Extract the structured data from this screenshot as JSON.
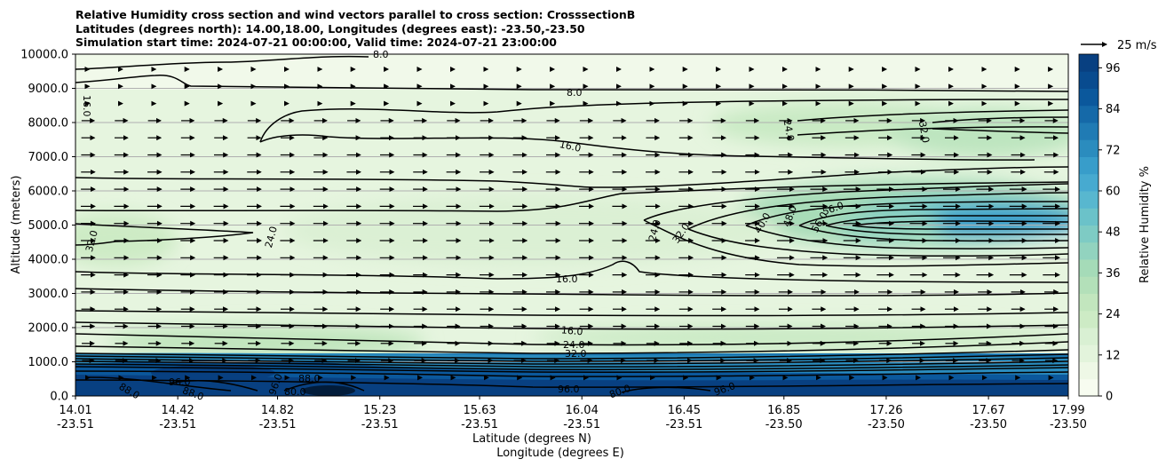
{
  "title_lines": [
    "Relative Humidity cross section and wind vectors parallel to cross section: CrosssectionB",
    "Latitudes (degrees north): 14.00,18.00, Longitudes (degrees east): -23.50,-23.50",
    "Simulation start time: 2024-07-21 00:00:00, Valid time: 2024-07-21 23:00:00"
  ],
  "chart_data": {
    "type": "contour cross-section with wind vectors",
    "ylabel": "Altitude (meters)",
    "xlabel_lines": [
      "Latitude (degrees N)",
      "Longitude (degrees E)"
    ],
    "ylim": [
      0,
      10000
    ],
    "y_ticks": [
      "0.0",
      "1000.0",
      "2000.0",
      "3000.0",
      "4000.0",
      "5000.0",
      "6000.0",
      "7000.0",
      "8000.0",
      "9000.0",
      "10000.0"
    ],
    "x_ticks": [
      {
        "lat": "14.01",
        "lon": "-23.51"
      },
      {
        "lat": "14.42",
        "lon": "-23.51"
      },
      {
        "lat": "14.82",
        "lon": "-23.51"
      },
      {
        "lat": "15.23",
        "lon": "-23.51"
      },
      {
        "lat": "15.63",
        "lon": "-23.51"
      },
      {
        "lat": "16.04",
        "lon": "-23.51"
      },
      {
        "lat": "16.45",
        "lon": "-23.51"
      },
      {
        "lat": "16.85",
        "lon": "-23.50"
      },
      {
        "lat": "17.26",
        "lon": "-23.50"
      },
      {
        "lat": "17.67",
        "lon": "-23.50"
      },
      {
        "lat": "17.99",
        "lon": "-23.50"
      }
    ],
    "grid": "horizontal lines",
    "colorbar": {
      "label": "Relative Humidity %",
      "ticks": [
        "0",
        "12",
        "24",
        "36",
        "48",
        "60",
        "72",
        "84",
        "96"
      ],
      "range": [
        0,
        100
      ],
      "colors": [
        "#f7fcf0",
        "#eef8e6",
        "#e3f4dc",
        "#d9f0d3",
        "#cdebc5",
        "#c2e6be",
        "#b3e0b9",
        "#a5dbb8",
        "#92d3bf",
        "#7ecbc4",
        "#6bc2c9",
        "#58b7cf",
        "#47aad0",
        "#389dca",
        "#2b8cbe",
        "#207bb4",
        "#1569a8",
        "#0b589c",
        "#084b8f",
        "#084081"
      ]
    },
    "wind_key": "25 m/s",
    "contour_labels": [
      "8.0",
      "8.0",
      "16.0",
      "16.0",
      "16.0",
      "16.0",
      "24.0",
      "24.0",
      "24.0",
      "24.0",
      "32.0",
      "32.0",
      "32.0",
      "32.0",
      "40.0",
      "48.0",
      "56.0",
      "56.0",
      "80.0",
      "88.0",
      "88.0",
      "88.0",
      "96.0",
      "96.0",
      "96.0",
      "96.0",
      "80.0"
    ]
  }
}
